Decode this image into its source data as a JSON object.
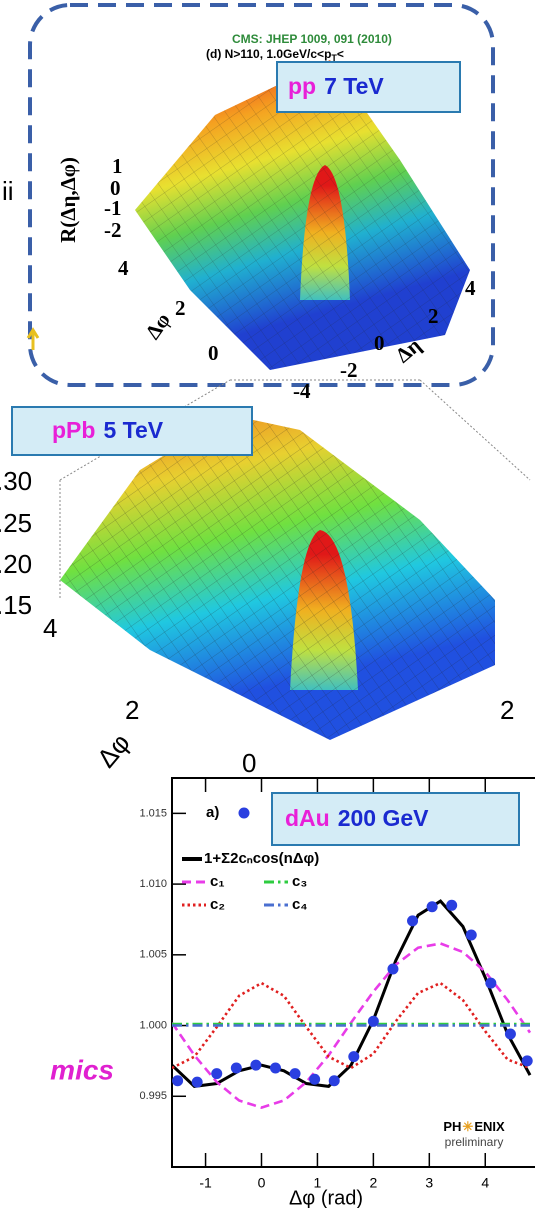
{
  "header": {
    "citation": "CMS: JHEP 1009, 091 (2010)",
    "cut": "(d) N>110, 1.0GeV/c<p",
    "cut_sub": "T",
    "cut_tail": "<"
  },
  "left_fragments": {
    "top": "ii",
    "bottom": "mics"
  },
  "panels": [
    {
      "label_system": "pp",
      "label_energy": "7 TeV",
      "z_title": "R(Δη,Δφ)",
      "z_ticks": [
        "1",
        "0",
        "-1",
        "-2"
      ],
      "phi_ticks": [
        "4",
        "2",
        "0"
      ],
      "phi_title": "Δφ",
      "eta_ticks": [
        "-4",
        "-2",
        "0",
        "2",
        "4"
      ],
      "eta_title": "Δη"
    },
    {
      "label_system": "pPb",
      "label_energy": "5 TeV",
      "z_ticks": [
        ".30",
        ".25",
        ".20",
        ".15"
      ],
      "phi_ticks": [
        "4",
        "2"
      ],
      "phi_title": "Δφ",
      "eta_ticks": [
        "0",
        "2"
      ]
    }
  ],
  "chart_data": {
    "type": "line",
    "label_system": "dAu",
    "label_energy": "200 GeV",
    "panel_label": "a)",
    "xlabel": "Δφ (rad)",
    "xlim": [
      -1.6,
      4.8
    ],
    "ylim": [
      0.99,
      1.0175
    ],
    "xticks": [
      -1,
      0,
      1,
      2,
      3,
      4
    ],
    "yticks": [
      0.995,
      {
        "value": 1.0,
        "label": "1.000"
      },
      {
        "value": 1.005,
        "label": "1.005"
      },
      {
        "value": 1.01,
        "label": "1.010"
      },
      1.015
    ],
    "x": [
      -1.6,
      -1.2,
      -0.8,
      -0.4,
      0,
      0.4,
      0.8,
      1.2,
      1.6,
      2.0,
      2.4,
      2.8,
      3.2,
      3.6,
      4.0,
      4.4,
      4.8
    ],
    "series": [
      {
        "name": "1+Σ2cₙcos(nΔφ)",
        "color": "#000000",
        "dash": "solid",
        "values": [
          0.9972,
          0.9957,
          0.9959,
          0.9968,
          0.9972,
          0.9968,
          0.9959,
          0.9957,
          0.9972,
          1.0004,
          1.0046,
          1.0078,
          1.0088,
          1.007,
          1.0034,
          0.9994,
          0.9965
        ]
      },
      {
        "name": "c₁",
        "color": "#e83ce8",
        "dash": "dashed",
        "values": [
          1.0002,
          0.9979,
          0.996,
          0.9947,
          0.9942,
          0.9947,
          0.996,
          0.9979,
          1.0002,
          1.0024,
          1.0043,
          1.0055,
          1.0058,
          1.0052,
          1.0038,
          1.0018,
          0.9995
        ]
      },
      {
        "name": "c₂",
        "color": "#e02020",
        "dash": "dotted",
        "values": [
          0.997,
          0.9978,
          0.9999,
          1.0021,
          1.003,
          1.0021,
          0.9999,
          0.9978,
          0.997,
          0.998,
          1.0003,
          1.0023,
          1.003,
          1.0018,
          0.9996,
          0.9976,
          0.997
        ]
      },
      {
        "name": "c₃",
        "color": "#2ecc40",
        "dash": "dashdot",
        "values": [
          1.0001,
          1.0001,
          1.0001,
          1.0001,
          1.0001,
          1.0001,
          1.0001,
          1.0001,
          1.0001,
          1.0001,
          1.0001,
          1.0001,
          1.0001,
          1.0001,
          1.0001,
          1.0001,
          1.0001
        ]
      },
      {
        "name": "c₄",
        "color": "#4a6fd0",
        "dash": "dashdot",
        "values": [
          1.0,
          1.0,
          1.0,
          1.0,
          1.0,
          1.0,
          1.0,
          1.0,
          1.0,
          1.0,
          1.0,
          1.0,
          1.0,
          1.0,
          1.0,
          1.0,
          1.0
        ]
      }
    ],
    "points": {
      "color": "#2a3fe0",
      "x": [
        -1.5,
        -1.15,
        -0.8,
        -0.45,
        -0.1,
        0.25,
        0.6,
        0.95,
        1.3,
        1.65,
        2.0,
        2.35,
        2.7,
        3.05,
        3.4,
        3.75,
        4.1,
        4.45,
        4.75
      ],
      "values": [
        0.9961,
        0.996,
        0.9966,
        0.997,
        0.9972,
        0.997,
        0.9966,
        0.9962,
        0.9961,
        0.9978,
        1.0003,
        1.004,
        1.0074,
        1.0084,
        1.0085,
        1.0064,
        1.003,
        0.9994,
        0.9975
      ]
    },
    "logo": {
      "left": "PH",
      "right": "ENIX",
      "sub": "preliminary"
    }
  }
}
